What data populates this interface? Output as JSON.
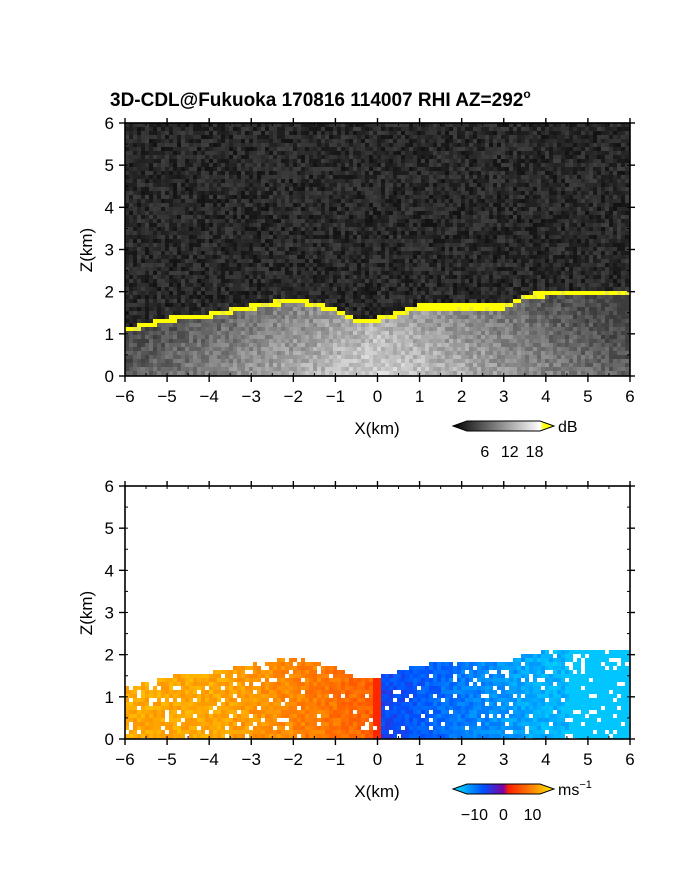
{
  "title": {
    "main": "3D-CDL@Fukuoka 170816 114007 RHI AZ=292",
    "superscript": "o"
  },
  "chart_data": [
    {
      "id": "intensity",
      "type": "heatmap",
      "title": "3D-CDL@Fukuoka 170816 114007 RHI AZ=292°",
      "xlabel": "X(km)",
      "ylabel": "Z(km)",
      "xlim": [
        -6,
        6
      ],
      "ylim": [
        0,
        6
      ],
      "xticks": [
        -6,
        -5,
        -4,
        -3,
        -2,
        -1,
        0,
        1,
        2,
        3,
        4,
        5,
        6
      ],
      "yticks": [
        0,
        1,
        2,
        3,
        4,
        5,
        6
      ],
      "colorbar": {
        "unit": "dB",
        "ticks": [
          6,
          12,
          18
        ],
        "range": [
          0,
          21
        ],
        "colors": [
          "#000000",
          "#ffffff",
          "#ffff00"
        ]
      },
      "layer_top_km": [
        {
          "x": -6.0,
          "z": 1.2
        },
        {
          "x": -5.0,
          "z": 1.45
        },
        {
          "x": -4.0,
          "z": 1.55
        },
        {
          "x": -3.0,
          "z": 1.75
        },
        {
          "x": -2.0,
          "z": 1.9
        },
        {
          "x": -1.0,
          "z": 1.65
        },
        {
          "x": -0.5,
          "z": 1.4
        },
        {
          "x": 0.0,
          "z": 1.45
        },
        {
          "x": 1.0,
          "z": 1.75
        },
        {
          "x": 2.0,
          "z": 1.75
        },
        {
          "x": 3.0,
          "z": 1.75
        },
        {
          "x": 3.5,
          "z": 2.0
        },
        {
          "x": 4.5,
          "z": 2.1
        },
        {
          "x": 6.0,
          "z": 2.1
        }
      ]
    },
    {
      "id": "velocity",
      "type": "heatmap",
      "xlabel": "X(km)",
      "ylabel": "Z(km)",
      "xlim": [
        -6,
        6
      ],
      "ylim": [
        0,
        6
      ],
      "xticks": [
        -6,
        -5,
        -4,
        -3,
        -2,
        -1,
        0,
        1,
        2,
        3,
        4,
        5,
        6
      ],
      "yticks": [
        0,
        1,
        2,
        3,
        4,
        5,
        6
      ],
      "colorbar": {
        "unit": "ms",
        "unit_exponent": "−1",
        "ticks": [
          -10,
          0,
          10
        ],
        "tick_labels": [
          "−10",
          "0",
          "10"
        ],
        "range": [
          -15,
          15
        ],
        "colors": [
          "#00e6ff",
          "#0050ff",
          "#ff2000",
          "#ffee00"
        ]
      },
      "velocity_field": {
        "x_negative_ms": [
          5,
          10
        ],
        "x_positive_ms": [
          -5,
          -12
        ],
        "far_right_ms": -13
      }
    }
  ]
}
